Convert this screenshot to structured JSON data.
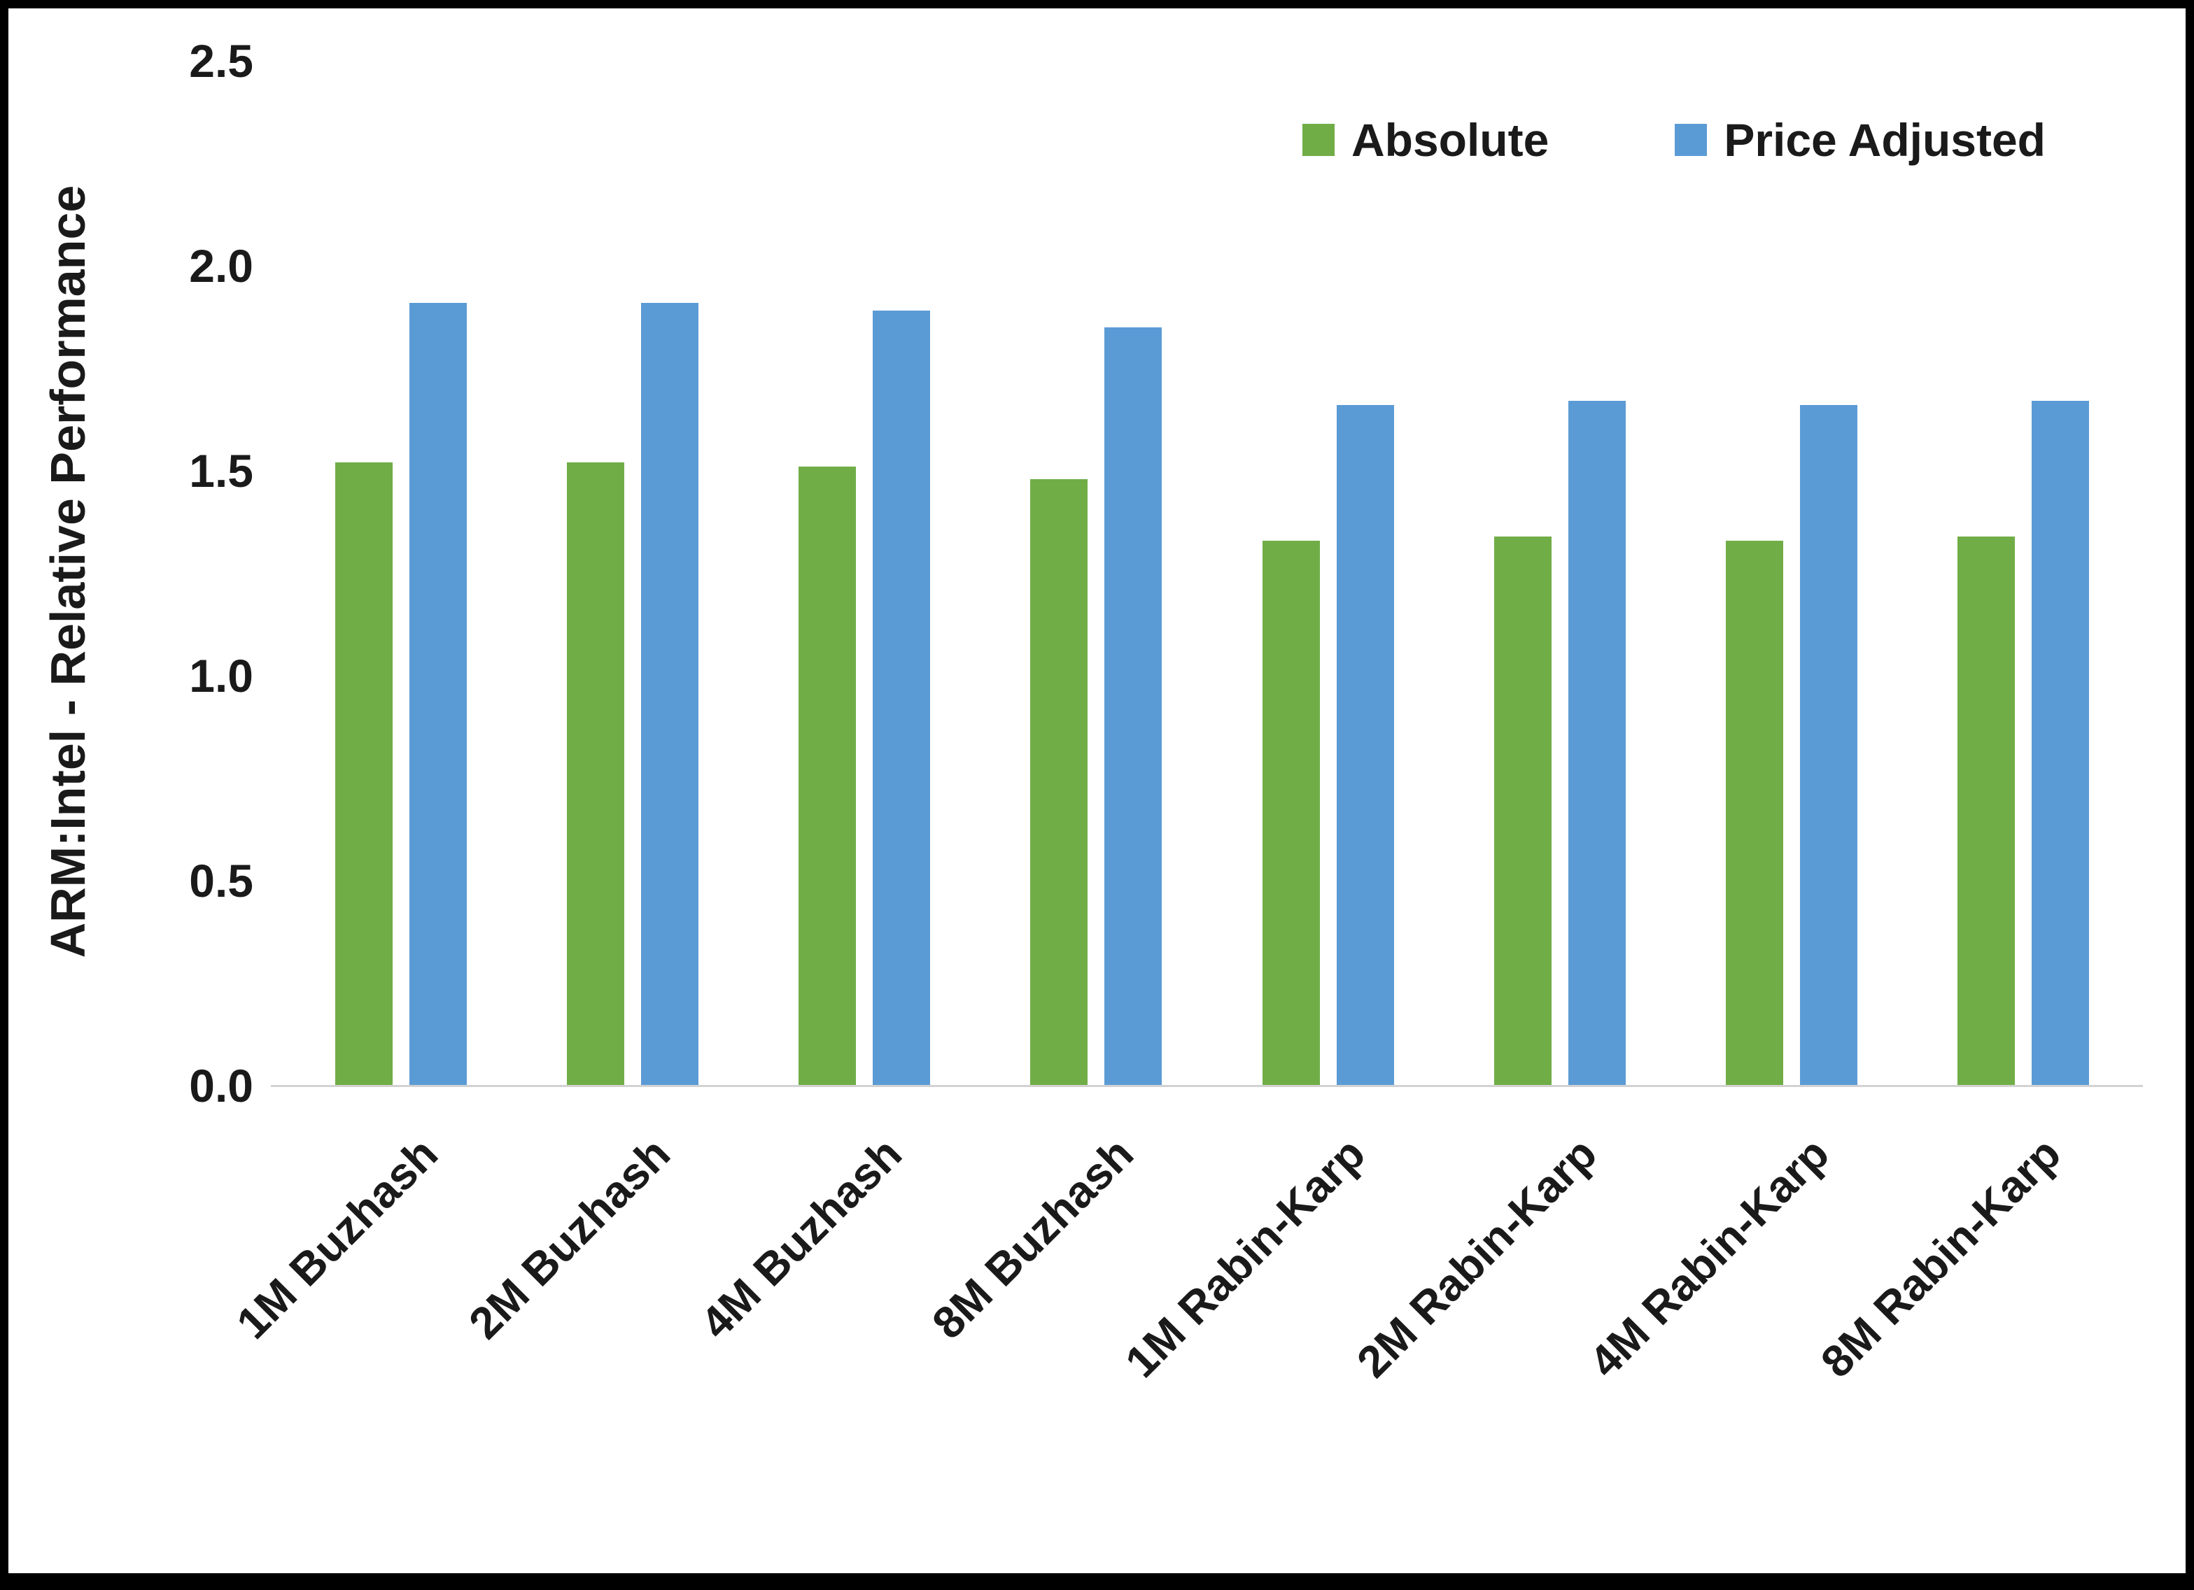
{
  "chart_data": {
    "type": "bar",
    "title": "",
    "categories": [
      "1M Buzhash",
      "2M Buzhash",
      "4M Buzhash",
      "8M Buzhash",
      "1M Rabin-Karp",
      "2M Rabin-Karp",
      "4M Rabin-Karp",
      "8M Rabin-Karp"
    ],
    "series": [
      {
        "name": "Absolute",
        "color": "#70AD47",
        "values": [
          1.52,
          1.52,
          1.51,
          1.48,
          1.33,
          1.34,
          1.33,
          1.34
        ]
      },
      {
        "name": "Price Adjusted",
        "color": "#5B9BD5",
        "values": [
          1.91,
          1.91,
          1.89,
          1.85,
          1.66,
          1.67,
          1.66,
          1.67
        ]
      }
    ],
    "xlabel": "",
    "ylabel": "ARM:Intel - Relative Performance",
    "ylim": [
      0,
      2.5
    ],
    "yticks": [
      "0.0",
      "0.5",
      "1.0",
      "1.5",
      "2.0",
      "2.5"
    ],
    "grid": false,
    "legend_position": "top-right",
    "axis_line_color": "#d2d2d2"
  }
}
